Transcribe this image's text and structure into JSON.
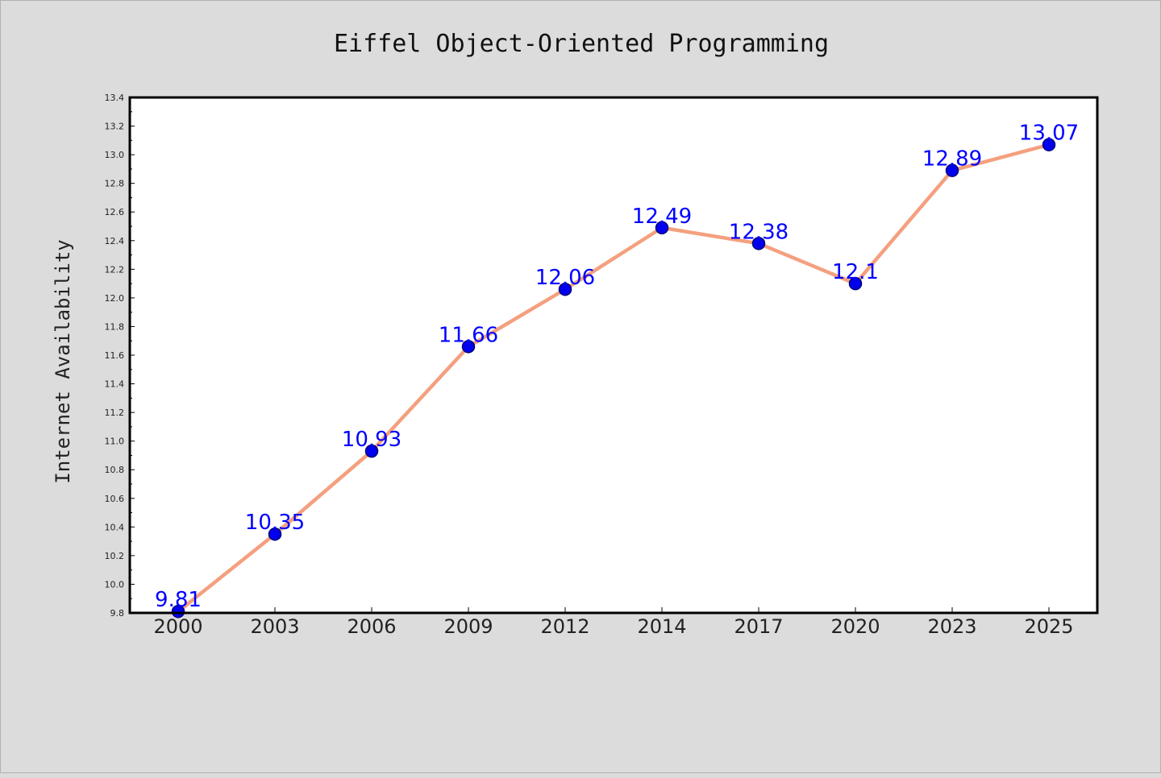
{
  "chart_data": {
    "type": "line",
    "title": "Eiffel Object-Oriented Programming",
    "xlabel": "",
    "ylabel": "Internet Availability",
    "categories": [
      "2000",
      "2003",
      "2006",
      "2009",
      "2012",
      "2014",
      "2017",
      "2020",
      "2023",
      "2025"
    ],
    "series": [
      {
        "values": [
          9.81,
          10.35,
          10.93,
          11.66,
          12.06,
          12.49,
          12.38,
          12.1,
          12.89,
          13.07
        ]
      }
    ],
    "ylim": [
      9.8,
      13.4
    ],
    "yticks": [
      "9.8",
      "10.0",
      "10.2",
      "10.4",
      "10.6",
      "10.8",
      "11.0",
      "11.2",
      "11.4",
      "11.6",
      "11.8",
      "12.0",
      "12.2",
      "12.4",
      "12.6",
      "12.8",
      "13.0",
      "13.2",
      "13.4"
    ],
    "data_labels": [
      "9.81",
      "10.35",
      "10.93",
      "11.66",
      "12.06",
      "12.49",
      "12.38",
      "12.1",
      "12.89",
      "13.07"
    ],
    "grid": false,
    "legend": "none",
    "colors": {
      "line": "#f4a07f",
      "marker": "#0000ee",
      "marker_edge": "#00007a",
      "label": "#0000ff",
      "background": "#dcdcdc",
      "plot_background": "#ffffff"
    }
  }
}
